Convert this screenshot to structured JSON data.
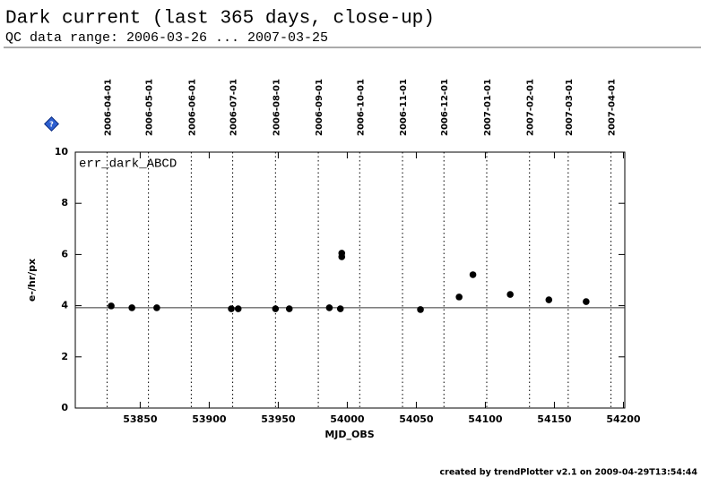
{
  "chart_data": {
    "type": "scatter",
    "title": "Dark current (last 365 days, close-up)",
    "subtitle": "QC data range: 2006-03-26 ... 2007-03-25",
    "series_label": "err_dark_ABCD",
    "xlabel": "MJD_OBS",
    "ylabel": "e-/hr/px",
    "footer": "created by trendPlotter v2.1 on 2009-04-29T13:54:44",
    "color": "#000000",
    "x": [
      53829,
      53844,
      53862,
      53916,
      53921,
      53948,
      53958,
      53987,
      53995,
      53996,
      53996,
      54053,
      54081,
      54091,
      54118,
      54146,
      54173
    ],
    "values": [
      3.99,
      3.92,
      3.92,
      3.88,
      3.88,
      3.88,
      3.88,
      3.92,
      3.88,
      6.05,
      5.91,
      3.85,
      4.34,
      5.21,
      4.44,
      4.23,
      4.16
    ],
    "reference_line": 3.92,
    "xlim": [
      53803,
      54201
    ],
    "xticks": [
      53850,
      53900,
      53950,
      54000,
      54050,
      54100,
      54150,
      54200
    ],
    "ylim": [
      0,
      10
    ],
    "yticks": [
      0,
      2,
      4,
      6,
      8,
      10
    ],
    "date_ticks": [
      {
        "value": 53826,
        "label": "2006-04-01"
      },
      {
        "value": 53856,
        "label": "2006-05-01"
      },
      {
        "value": 53887,
        "label": "2006-06-01"
      },
      {
        "value": 53917,
        "label": "2006-07-01"
      },
      {
        "value": 53948,
        "label": "2006-08-01"
      },
      {
        "value": 53979,
        "label": "2006-09-01"
      },
      {
        "value": 54009,
        "label": "2006-10-01"
      },
      {
        "value": 54040,
        "label": "2006-11-01"
      },
      {
        "value": 54070,
        "label": "2006-12-01"
      },
      {
        "value": 54101,
        "label": "2007-01-01"
      },
      {
        "value": 54132,
        "label": "2007-02-01"
      },
      {
        "value": 54160,
        "label": "2007-03-01"
      },
      {
        "value": 54191,
        "label": "2007-04-01"
      }
    ]
  }
}
